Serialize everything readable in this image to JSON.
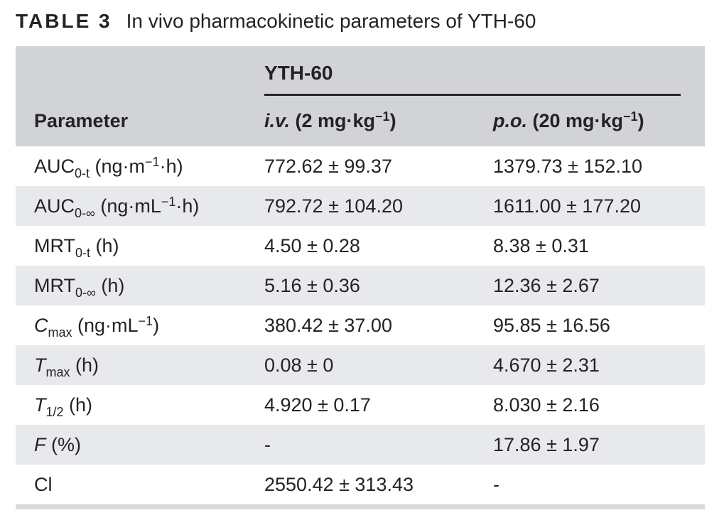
{
  "caption": {
    "label": "TABLE 3",
    "title": "In vivo pharmacokinetic parameters of YTH-60"
  },
  "colors": {
    "header_band": "#d2d3d4",
    "row_stripe": "#e7e9ea",
    "group_rule": "#29272b",
    "text": "#242227",
    "bottom_bar": "#d9dadc"
  },
  "table": {
    "group_header": "YTH-60",
    "param_header": "Parameter",
    "iv_header": [
      {
        "t": "i.v.",
        "s": "i"
      },
      {
        "t": " (2 mg·kg"
      },
      {
        "t": "−1",
        "s": "sup"
      },
      {
        "t": ")"
      }
    ],
    "po_header": [
      {
        "t": "p.o.",
        "s": "i"
      },
      {
        "t": " (20 mg·kg"
      },
      {
        "t": "−1",
        "s": "sup"
      },
      {
        "t": ")"
      }
    ],
    "rows": [
      {
        "param": [
          {
            "t": "AUC"
          },
          {
            "t": "0-t",
            "s": "sub"
          },
          {
            "t": " (ng·m"
          },
          {
            "t": "−1",
            "s": "sup"
          },
          {
            "t": "·h)"
          }
        ],
        "iv": "772.62 ± 99.37",
        "po": "1379.73 ± 152.10"
      },
      {
        "param": [
          {
            "t": "AUC"
          },
          {
            "t": "0-∞",
            "s": "sub"
          },
          {
            "t": " (ng·mL"
          },
          {
            "t": "−1",
            "s": "sup"
          },
          {
            "t": "·h)"
          }
        ],
        "iv": "792.72 ± 104.20",
        "po": "1611.00 ± 177.20"
      },
      {
        "param": [
          {
            "t": "MRT"
          },
          {
            "t": "0-t",
            "s": "sub"
          },
          {
            "t": " (h)"
          }
        ],
        "iv": "4.50 ± 0.28",
        "po": "8.38 ± 0.31"
      },
      {
        "param": [
          {
            "t": "MRT"
          },
          {
            "t": "0-∞",
            "s": "sub"
          },
          {
            "t": " (h)"
          }
        ],
        "iv": "5.16 ± 0.36",
        "po": "12.36 ± 2.67"
      },
      {
        "param": [
          {
            "t": "C",
            "s": "i"
          },
          {
            "t": "max",
            "s": "sub"
          },
          {
            "t": " (ng·mL"
          },
          {
            "t": "−1",
            "s": "sup"
          },
          {
            "t": ")"
          }
        ],
        "iv": "380.42 ± 37.00",
        "po": "95.85 ± 16.56"
      },
      {
        "param": [
          {
            "t": "T",
            "s": "i"
          },
          {
            "t": "max",
            "s": "sub"
          },
          {
            "t": " (h)"
          }
        ],
        "iv": "0.08 ± 0",
        "po": "4.670 ± 2.31"
      },
      {
        "param": [
          {
            "t": "T",
            "s": "i"
          },
          {
            "t": "1/2",
            "s": "sub"
          },
          {
            "t": " (h)"
          }
        ],
        "iv": "4.920 ± 0.17",
        "po": "8.030 ± 2.16"
      },
      {
        "param": [
          {
            "t": "F",
            "s": "i"
          },
          {
            "t": " (%)"
          }
        ],
        "iv": "-",
        "po": "17.86 ± 1.97"
      },
      {
        "param": [
          {
            "t": "Cl"
          }
        ],
        "iv": "2550.42 ± 313.43",
        "po": "-"
      }
    ]
  }
}
